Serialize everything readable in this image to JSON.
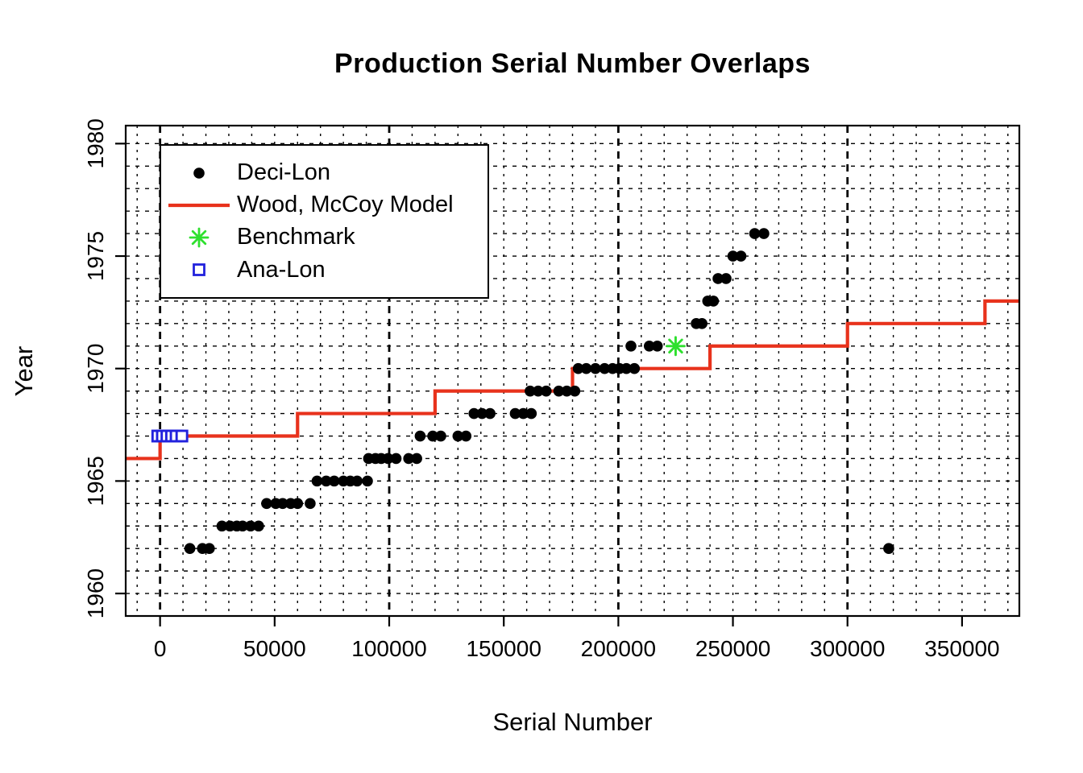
{
  "figure": {
    "title": "Production Serial Number Overlaps",
    "xlabel": "Serial Number",
    "ylabel": "Year"
  },
  "chart_data": {
    "type": "scatter",
    "title": "Production Serial Number Overlaps",
    "xlabel": "Serial Number",
    "ylabel": "Year",
    "xlim": [
      -15000,
      375000
    ],
    "ylim": [
      1959.0,
      1980.8
    ],
    "x_ticks": [
      0,
      50000,
      100000,
      150000,
      200000,
      250000,
      300000,
      350000
    ],
    "y_ticks": [
      1960,
      1965,
      1970,
      1975,
      1980
    ],
    "grid": {
      "on": true,
      "minor_x_step": 10000,
      "minor_x_range": [
        -10000,
        370000
      ],
      "major_x": [
        0,
        100000,
        200000,
        300000
      ],
      "y_step": 1,
      "y_range": [
        1960,
        1980
      ]
    },
    "legend_position": "top-left",
    "series": [
      {
        "name": "Deci-Lon",
        "type": "scatter",
        "marker": "filled-circle",
        "color": "#000000",
        "points": [
          [
            13000,
            1962
          ],
          [
            18500,
            1962
          ],
          [
            21500,
            1962
          ],
          [
            318000,
            1962
          ],
          [
            27000,
            1963
          ],
          [
            30500,
            1963
          ],
          [
            33500,
            1963
          ],
          [
            36000,
            1963
          ],
          [
            39500,
            1963
          ],
          [
            43000,
            1963
          ],
          [
            46500,
            1964
          ],
          [
            50500,
            1964
          ],
          [
            53500,
            1964
          ],
          [
            57000,
            1964
          ],
          [
            60000,
            1964
          ],
          [
            65500,
            1964
          ],
          [
            68500,
            1965
          ],
          [
            72500,
            1965
          ],
          [
            76000,
            1965
          ],
          [
            80000,
            1965
          ],
          [
            83000,
            1965
          ],
          [
            86000,
            1965
          ],
          [
            90500,
            1965
          ],
          [
            91000,
            1966
          ],
          [
            94000,
            1966
          ],
          [
            96500,
            1966
          ],
          [
            99500,
            1966
          ],
          [
            103000,
            1966
          ],
          [
            108500,
            1966
          ],
          [
            112000,
            1966
          ],
          [
            113500,
            1967
          ],
          [
            119000,
            1967
          ],
          [
            122500,
            1967
          ],
          [
            130000,
            1967
          ],
          [
            133500,
            1967
          ],
          [
            137000,
            1968
          ],
          [
            140500,
            1968
          ],
          [
            144000,
            1968
          ],
          [
            155000,
            1968
          ],
          [
            158500,
            1968
          ],
          [
            162000,
            1968
          ],
          [
            161500,
            1969
          ],
          [
            165000,
            1969
          ],
          [
            168500,
            1969
          ],
          [
            174000,
            1969
          ],
          [
            177500,
            1969
          ],
          [
            181000,
            1969
          ],
          [
            182500,
            1970
          ],
          [
            186000,
            1970
          ],
          [
            190000,
            1970
          ],
          [
            194000,
            1970
          ],
          [
            197500,
            1970
          ],
          [
            200500,
            1970
          ],
          [
            203500,
            1970
          ],
          [
            207000,
            1970
          ],
          [
            205500,
            1971
          ],
          [
            213500,
            1971
          ],
          [
            217000,
            1971
          ],
          [
            234000,
            1972
          ],
          [
            236500,
            1972
          ],
          [
            239000,
            1973
          ],
          [
            241500,
            1973
          ],
          [
            243500,
            1974
          ],
          [
            247000,
            1974
          ],
          [
            250000,
            1975
          ],
          [
            253500,
            1975
          ],
          [
            259500,
            1976
          ],
          [
            263500,
            1976
          ]
        ]
      },
      {
        "name": "Wood, McCoy Model",
        "type": "step-line",
        "color": "#e8321c",
        "points": [
          [
            -15000,
            1966
          ],
          [
            0,
            1966
          ],
          [
            0,
            1967
          ],
          [
            60000,
            1967
          ],
          [
            60000,
            1968
          ],
          [
            120000,
            1968
          ],
          [
            120000,
            1969
          ],
          [
            180000,
            1969
          ],
          [
            180000,
            1970
          ],
          [
            240000,
            1970
          ],
          [
            240000,
            1971
          ],
          [
            300000,
            1971
          ],
          [
            300000,
            1972
          ],
          [
            360000,
            1972
          ],
          [
            360000,
            1973
          ],
          [
            375000,
            1973
          ]
        ]
      },
      {
        "name": "Benchmark",
        "type": "scatter",
        "marker": "asterisk",
        "color": "#2ee02e",
        "points": [
          [
            225000,
            1971
          ]
        ]
      },
      {
        "name": "Ana-Lon",
        "type": "scatter",
        "marker": "open-square",
        "color": "#2222dd",
        "points": [
          [
            -1000,
            1967
          ],
          [
            1000,
            1967
          ],
          [
            3000,
            1967
          ],
          [
            5000,
            1967
          ],
          [
            7000,
            1967
          ],
          [
            9500,
            1967
          ]
        ]
      }
    ]
  }
}
